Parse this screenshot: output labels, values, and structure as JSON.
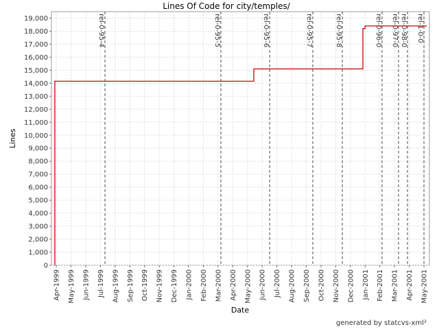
{
  "chart_data": {
    "type": "line",
    "title": "Lines Of Code for city/temples/",
    "x_label": "Date",
    "y_label": "Lines",
    "footer": "generated by statcvs-xml²",
    "xlim": [
      -0.33,
      25.37
    ],
    "ylim": [
      0,
      19500
    ],
    "xticks": [
      {
        "value": 0,
        "label": "Apr-1999"
      },
      {
        "value": 1,
        "label": "May-1999"
      },
      {
        "value": 2,
        "label": "Jun-1999"
      },
      {
        "value": 3,
        "label": "Jul-1999"
      },
      {
        "value": 4,
        "label": "Aug-1999"
      },
      {
        "value": 5,
        "label": "Sep-1999"
      },
      {
        "value": 6,
        "label": "Oct-1999"
      },
      {
        "value": 7,
        "label": "Nov-1999"
      },
      {
        "value": 8,
        "label": "Dec-1999"
      },
      {
        "value": 9,
        "label": "Jan-2000"
      },
      {
        "value": 10,
        "label": "Feb-2000"
      },
      {
        "value": 11,
        "label": "Mar-2000"
      },
      {
        "value": 12,
        "label": "Apr-2000"
      },
      {
        "value": 13,
        "label": "May-2000"
      },
      {
        "value": 14,
        "label": "Jun-2000"
      },
      {
        "value": 15,
        "label": "Jul-2000"
      },
      {
        "value": 16,
        "label": "Aug-2000"
      },
      {
        "value": 17,
        "label": "Sep-2000"
      },
      {
        "value": 18,
        "label": "Oct-2000"
      },
      {
        "value": 19,
        "label": "Nov-2000"
      },
      {
        "value": 20,
        "label": "Dec-2000"
      },
      {
        "value": 21,
        "label": "Jan-2001"
      },
      {
        "value": 22,
        "label": "Feb-2001"
      },
      {
        "value": 23,
        "label": "Mar-2001"
      },
      {
        "value": 24,
        "label": "Apr-2001"
      },
      {
        "value": 25,
        "label": "May-2001"
      }
    ],
    "yticks": [
      0,
      {
        "value": 1000,
        "label": "1,000"
      },
      {
        "value": 2000,
        "label": "2,000"
      },
      {
        "value": 3000,
        "label": "3,000"
      },
      {
        "value": 4000,
        "label": "4,000"
      },
      {
        "value": 5000,
        "label": "5,000"
      },
      {
        "value": 6000,
        "label": "6,000"
      },
      {
        "value": 7000,
        "label": "7,000"
      },
      {
        "value": 8000,
        "label": "8,000"
      },
      {
        "value": 9000,
        "label": "9,000"
      },
      {
        "value": 10000,
        "label": "10,000"
      },
      {
        "value": 11000,
        "label": "11,000"
      },
      {
        "value": 12000,
        "label": "12,000"
      },
      {
        "value": 13000,
        "label": "13,000"
      },
      {
        "value": 14000,
        "label": "14,000"
      },
      {
        "value": 15000,
        "label": "15,000"
      },
      {
        "value": 16000,
        "label": "16,000"
      },
      {
        "value": 17000,
        "label": "17,000"
      },
      {
        "value": 18000,
        "label": "18,000"
      },
      {
        "value": 19000,
        "label": "19,000"
      }
    ],
    "grid": true,
    "x": [
      -0.1,
      -0.1,
      13.43,
      13.43,
      20.85,
      20.85,
      20.99,
      20.99,
      25.19
    ],
    "series": [
      {
        "name": "Lines",
        "color": "#cc0000",
        "values": [
          0,
          14150,
          14150,
          15100,
          15100,
          18200,
          18200,
          18400,
          18400
        ]
      }
    ],
    "markers": [
      {
        "label": "rel-0-95-4",
        "x": 3.31
      },
      {
        "label": "rel-0-95-5",
        "x": 11.19
      },
      {
        "label": "rel-0-95-6",
        "x": 14.51
      },
      {
        "label": "rel-0-95-7",
        "x": 17.44
      },
      {
        "label": "rel-0-95-8",
        "x": 19.45
      },
      {
        "label": "rel-0-96-0",
        "x": 22.15
      },
      {
        "label": "rel-0-97-0",
        "x": 23.27
      },
      {
        "label": "rel-0-98-0",
        "x": 23.88
      },
      {
        "label": "rel-1-0-0",
        "x": 25.0
      }
    ]
  }
}
